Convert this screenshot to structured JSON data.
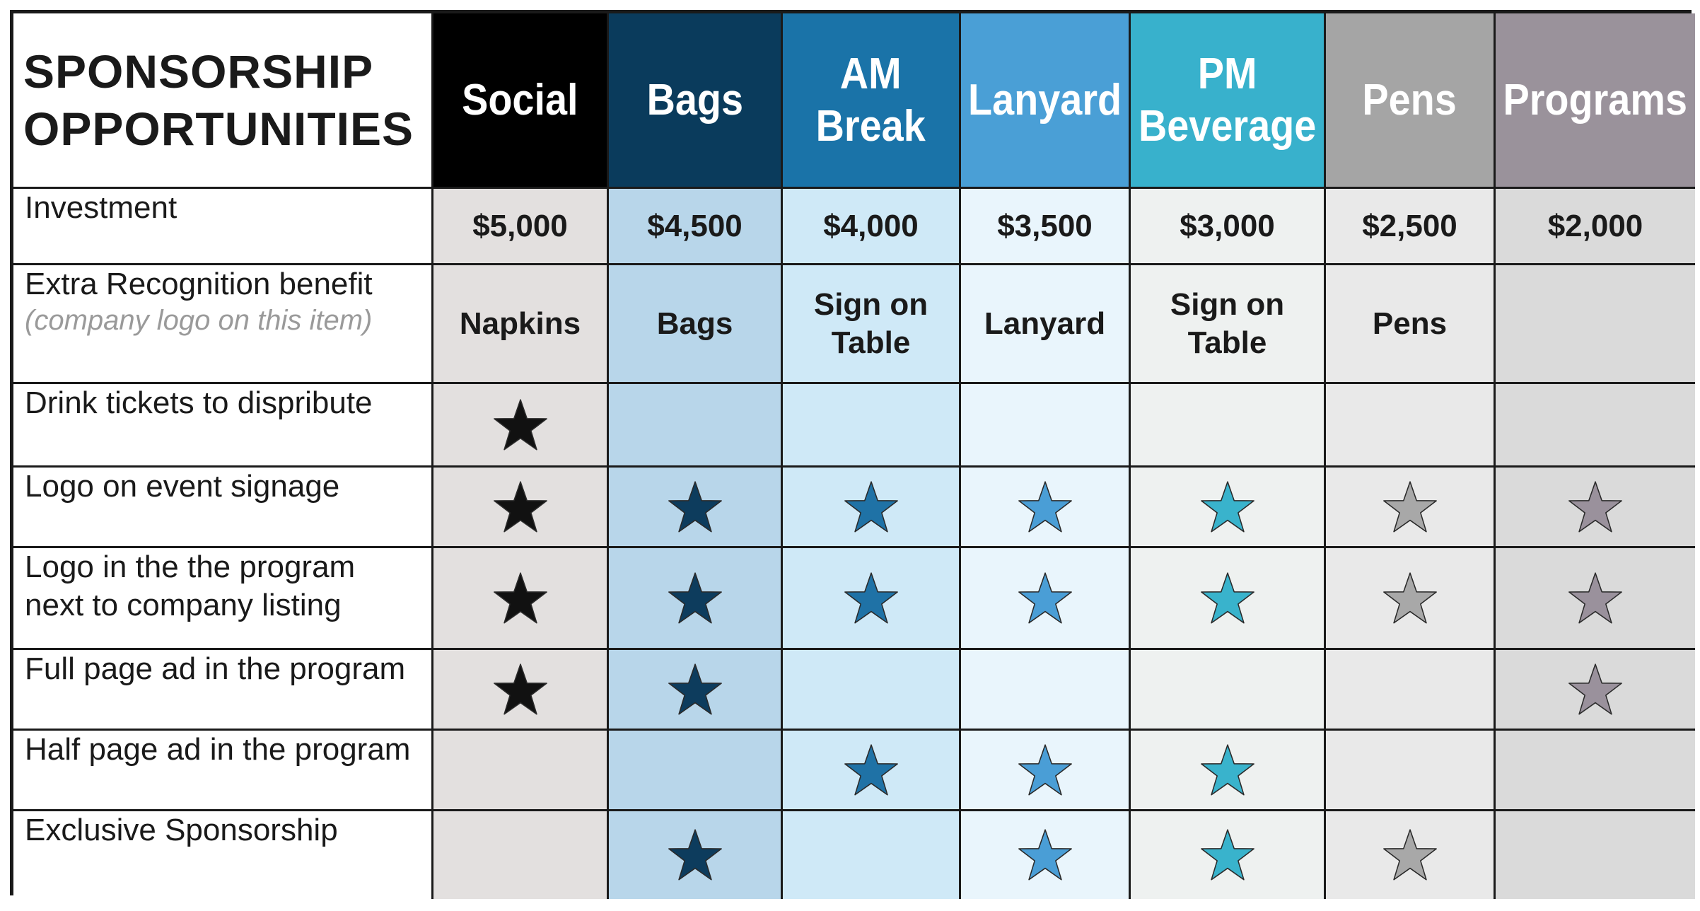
{
  "title": {
    "line1": "SPONSORSHIP",
    "line2": "OPPORTUNITIES"
  },
  "columns": [
    {
      "id": "social",
      "lines": [
        "Social"
      ],
      "header_color": "#000000",
      "cell_color": "#e3e0df",
      "star_color": "#111111",
      "price": "$5,000",
      "benefit": [
        "Napkins"
      ]
    },
    {
      "id": "bags",
      "lines": [
        "Bags"
      ],
      "header_color": "#0a3b5c",
      "cell_color": "#b8d6ea",
      "star_color": "#0d3c5d",
      "price": "$4,500",
      "benefit": [
        "Bags"
      ]
    },
    {
      "id": "am-break",
      "lines": [
        "AM",
        "Break"
      ],
      "header_color": "#1a73a8",
      "cell_color": "#cfe9f7",
      "star_color": "#1f72a6",
      "price": "$4,000",
      "benefit": [
        "Sign on",
        "Table"
      ]
    },
    {
      "id": "lanyard",
      "lines": [
        "Lanyard"
      ],
      "header_color": "#4a9fd6",
      "cell_color": "#e9f5fc",
      "star_color": "#4a9ed6",
      "price": "$3,500",
      "benefit": [
        "Lanyard"
      ]
    },
    {
      "id": "pm-beverage",
      "lines": [
        "PM",
        "Beverage"
      ],
      "header_color": "#38b1cc",
      "cell_color": "#eef1f0",
      "star_color": "#39b3cc",
      "price": "$3,000",
      "benefit": [
        "Sign on",
        "Table"
      ]
    },
    {
      "id": "pens",
      "lines": [
        "Pens"
      ],
      "header_color": "#a5a5a5",
      "cell_color": "#e9e9e9",
      "star_color": "#a8a8a8",
      "price": "$2,500",
      "benefit": [
        "Pens"
      ]
    },
    {
      "id": "programs",
      "lines": [
        "Programs"
      ],
      "header_color": "#9a929b",
      "cell_color": "#dadada",
      "star_color": "#9a919c",
      "price": "$2,000",
      "benefit": []
    }
  ],
  "rows": [
    {
      "id": "investment",
      "label": "Investment",
      "sublabel": "",
      "kind": "price"
    },
    {
      "id": "extra-recognition",
      "label": "Extra Recognition benefit",
      "sublabel": "(company logo on this item)",
      "kind": "benefit"
    },
    {
      "id": "drink-tickets",
      "label": "Drink tickets to dispribute",
      "sublabel": "",
      "kind": "stars",
      "stars": [
        true,
        false,
        false,
        false,
        false,
        false,
        false
      ]
    },
    {
      "id": "logo-signage",
      "label": "Logo on event signage",
      "sublabel": "",
      "kind": "stars",
      "stars": [
        true,
        true,
        true,
        true,
        true,
        true,
        true
      ]
    },
    {
      "id": "logo-program-listing",
      "label": "Logo in the the program next to company listing",
      "sublabel": "",
      "kind": "stars",
      "stars": [
        true,
        true,
        true,
        true,
        true,
        true,
        true
      ]
    },
    {
      "id": "full-page-ad",
      "label": "Full page ad in the program",
      "sublabel": "",
      "kind": "stars",
      "stars": [
        true,
        true,
        false,
        false,
        false,
        false,
        true
      ]
    },
    {
      "id": "half-page-ad",
      "label": "Half page ad in the program",
      "sublabel": "",
      "kind": "stars",
      "stars": [
        false,
        false,
        true,
        true,
        true,
        false,
        false
      ]
    },
    {
      "id": "exclusive",
      "label": "Exclusive Sponsorship",
      "sublabel": "",
      "kind": "stars",
      "stars": [
        false,
        true,
        false,
        true,
        true,
        true,
        false
      ]
    }
  ]
}
